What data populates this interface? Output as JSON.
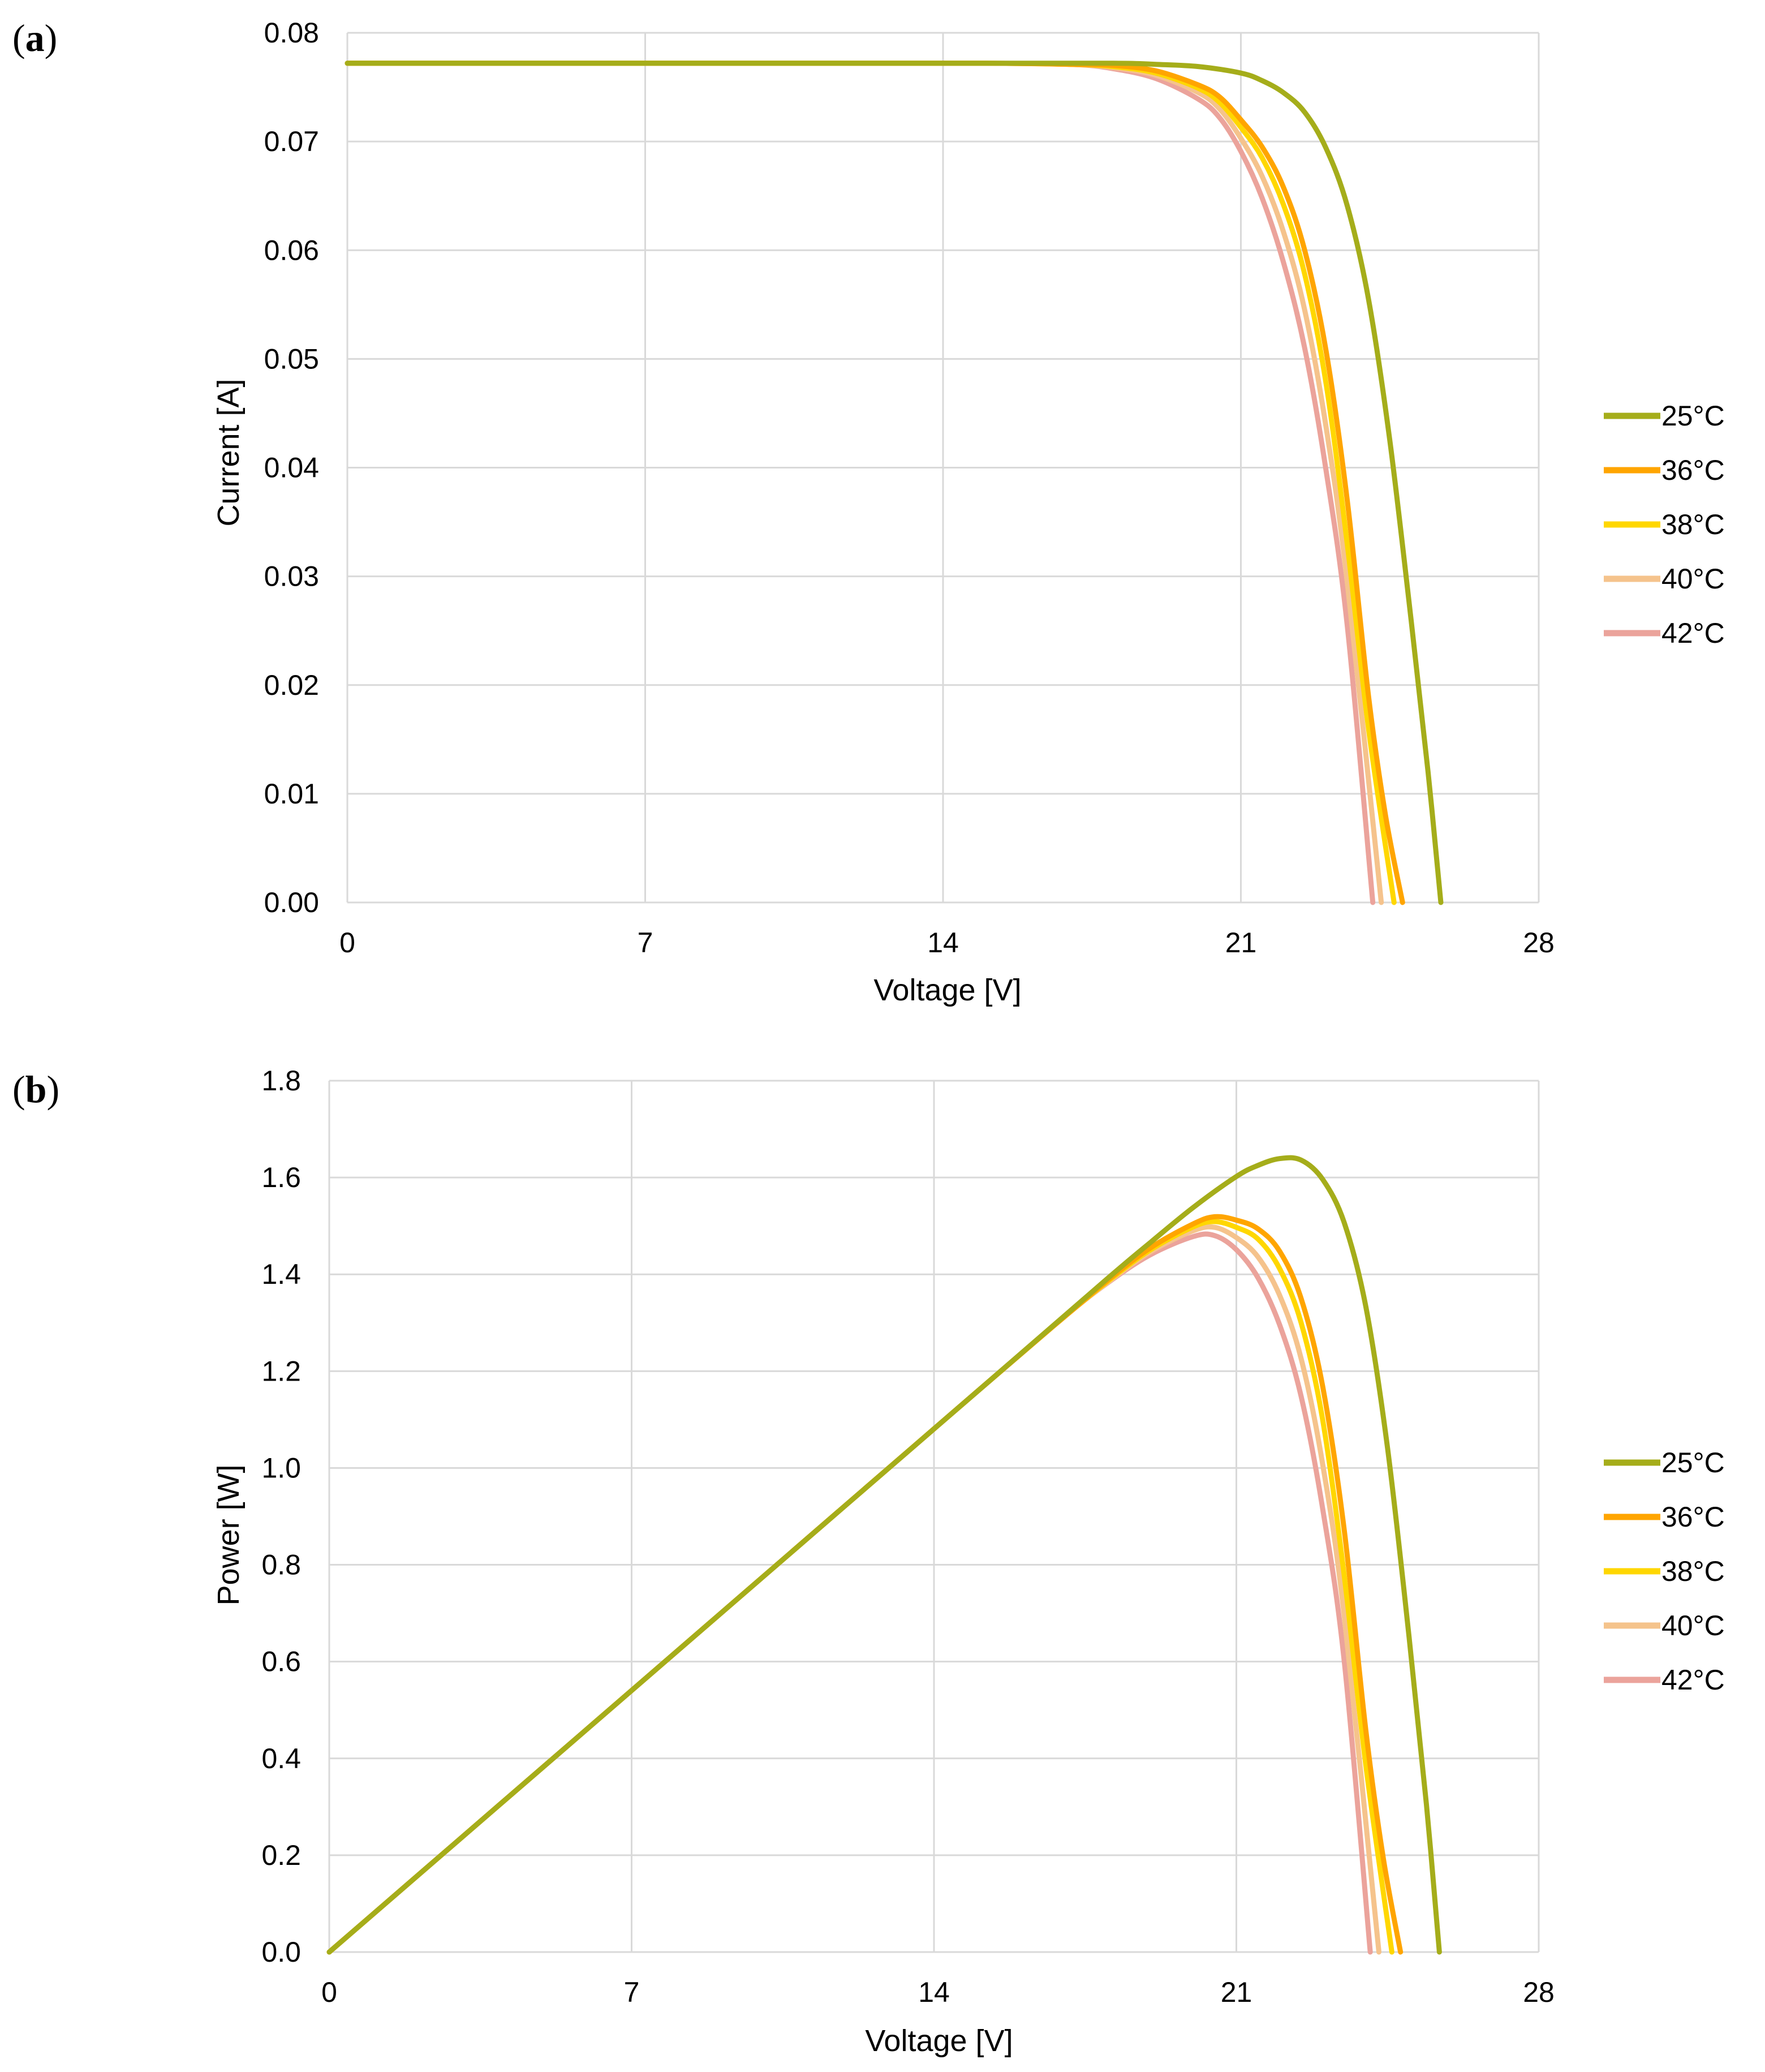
{
  "colors": {
    "25C": "#a5ad1a",
    "36C": "#ffa500",
    "38C": "#ffd700",
    "40C": "#f5c38c",
    "42C": "#eba39b",
    "grid": "#d9d9d9"
  },
  "chart_data": [
    {
      "panel_label": "a",
      "type": "line",
      "title": "",
      "xlabel": "Voltage [V]",
      "ylabel": "Current [A]",
      "xlim": [
        0,
        28
      ],
      "ylim": [
        0,
        0.08
      ],
      "grid": true,
      "legend_position": "right",
      "x_ticks": [
        "0",
        "7",
        "14",
        "21",
        "28"
      ],
      "y_ticks": [
        "0.00",
        "0.01",
        "0.02",
        "0.03",
        "0.04",
        "0.05",
        "0.06",
        "0.07",
        "0.08"
      ],
      "series": [
        {
          "name": "25°C",
          "color_key": "25C",
          "x": [
            0,
            5,
            10,
            15,
            18,
            19,
            20,
            21,
            21.5,
            22,
            22.5,
            23,
            23.5,
            24,
            24.5,
            25,
            25.4,
            25.7
          ],
          "y": [
            0.0772,
            0.0772,
            0.0772,
            0.0772,
            0.0772,
            0.0771,
            0.0769,
            0.0763,
            0.0756,
            0.0745,
            0.0727,
            0.0694,
            0.0641,
            0.0555,
            0.0425,
            0.026,
            0.012,
            0.0
          ]
        },
        {
          "name": "36°C",
          "color_key": "36C",
          "x": [
            0,
            5,
            10,
            15,
            17,
            18,
            19,
            20,
            20.5,
            21,
            21.5,
            22,
            22.5,
            23,
            23.5,
            24,
            24.4,
            24.8
          ],
          "y": [
            0.0772,
            0.0772,
            0.0772,
            0.0772,
            0.0771,
            0.077,
            0.0765,
            0.0752,
            0.0741,
            0.072,
            0.0695,
            0.0658,
            0.06,
            0.0508,
            0.037,
            0.019,
            0.008,
            0.0
          ]
        },
        {
          "name": "38°C",
          "color_key": "38C",
          "x": [
            0,
            5,
            10,
            15,
            17,
            18,
            19,
            20,
            20.5,
            21,
            21.5,
            22,
            22.5,
            23,
            23.5,
            24,
            24.6
          ],
          "y": [
            0.0772,
            0.0772,
            0.0772,
            0.0772,
            0.0771,
            0.0769,
            0.0763,
            0.0749,
            0.0736,
            0.0713,
            0.0685,
            0.0642,
            0.0578,
            0.0478,
            0.033,
            0.016,
            0.0
          ]
        },
        {
          "name": "40°C",
          "color_key": "40C",
          "x": [
            0,
            5,
            10,
            15,
            17,
            18,
            19,
            20,
            20.5,
            21,
            21.5,
            22,
            22.5,
            23,
            23.5,
            24.3
          ],
          "y": [
            0.0772,
            0.0772,
            0.0772,
            0.0772,
            0.0771,
            0.0768,
            0.0761,
            0.0745,
            0.073,
            0.0703,
            0.0668,
            0.0617,
            0.0545,
            0.0438,
            0.0295,
            0.0
          ]
        },
        {
          "name": "42°C",
          "color_key": "42C",
          "x": [
            0,
            5,
            10,
            15,
            17,
            18,
            19,
            20,
            20.5,
            21,
            21.5,
            22,
            22.5,
            23,
            23.5,
            24.1
          ],
          "y": [
            0.0772,
            0.0772,
            0.0772,
            0.0772,
            0.0771,
            0.0767,
            0.0758,
            0.0739,
            0.0722,
            0.0691,
            0.0648,
            0.0589,
            0.051,
            0.0398,
            0.0255,
            0.0
          ]
        }
      ]
    },
    {
      "panel_label": "b",
      "type": "line",
      "title": "",
      "xlabel": "Voltage [V]",
      "ylabel": "Power [W]",
      "xlim": [
        0,
        28
      ],
      "ylim": [
        0,
        1.8
      ],
      "grid": true,
      "legend_position": "right",
      "x_ticks": [
        "0",
        "7",
        "14",
        "21",
        "28"
      ],
      "y_ticks": [
        "0.0",
        "0.2",
        "0.4",
        "0.6",
        "0.8",
        "1.0",
        "1.2",
        "1.4",
        "1.6",
        "1.8"
      ],
      "series": [
        {
          "name": "25°C",
          "color_key": "25C",
          "x": [
            0,
            5,
            10,
            15,
            18,
            19,
            20,
            21,
            21.5,
            22,
            22.5,
            23,
            23.5,
            24,
            24.5,
            25,
            25.4,
            25.7
          ],
          "y": [
            0,
            0.386,
            0.772,
            1.158,
            1.39,
            1.465,
            1.538,
            1.602,
            1.625,
            1.639,
            1.636,
            1.596,
            1.506,
            1.332,
            1.041,
            0.65,
            0.305,
            0.0
          ]
        },
        {
          "name": "36°C",
          "color_key": "36C",
          "x": [
            0,
            5,
            10,
            15,
            17,
            18,
            19,
            20,
            20.5,
            21,
            21.5,
            22,
            22.5,
            23,
            23.5,
            24,
            24.4,
            24.8
          ],
          "y": [
            0,
            0.386,
            0.772,
            1.158,
            1.311,
            1.386,
            1.454,
            1.504,
            1.519,
            1.512,
            1.494,
            1.448,
            1.35,
            1.168,
            0.87,
            0.456,
            0.195,
            0.0
          ]
        },
        {
          "name": "38°C",
          "color_key": "38C",
          "x": [
            0,
            5,
            10,
            15,
            17,
            18,
            19,
            20,
            20.5,
            21,
            21.5,
            22,
            22.5,
            23,
            23.5,
            24,
            24.6
          ],
          "y": [
            0,
            0.386,
            0.772,
            1.158,
            1.311,
            1.384,
            1.45,
            1.498,
            1.509,
            1.497,
            1.473,
            1.412,
            1.3,
            1.099,
            0.776,
            0.384,
            0.0
          ]
        },
        {
          "name": "40°C",
          "color_key": "40C",
          "x": [
            0,
            5,
            10,
            15,
            17,
            18,
            19,
            20,
            20.5,
            21,
            21.5,
            22,
            22.5,
            23,
            23.5,
            24.3
          ],
          "y": [
            0,
            0.386,
            0.772,
            1.158,
            1.311,
            1.382,
            1.446,
            1.49,
            1.497,
            1.476,
            1.436,
            1.357,
            1.226,
            1.007,
            0.693,
            0.0
          ]
        },
        {
          "name": "42°C",
          "color_key": "42C",
          "x": [
            0,
            5,
            10,
            15,
            17,
            18,
            19,
            20,
            20.5,
            21,
            21.5,
            22,
            22.5,
            23,
            23.5,
            24.1
          ],
          "y": [
            0,
            0.386,
            0.772,
            1.158,
            1.311,
            1.381,
            1.44,
            1.478,
            1.48,
            1.451,
            1.393,
            1.296,
            1.148,
            0.915,
            0.599,
            0.0
          ]
        }
      ]
    }
  ]
}
